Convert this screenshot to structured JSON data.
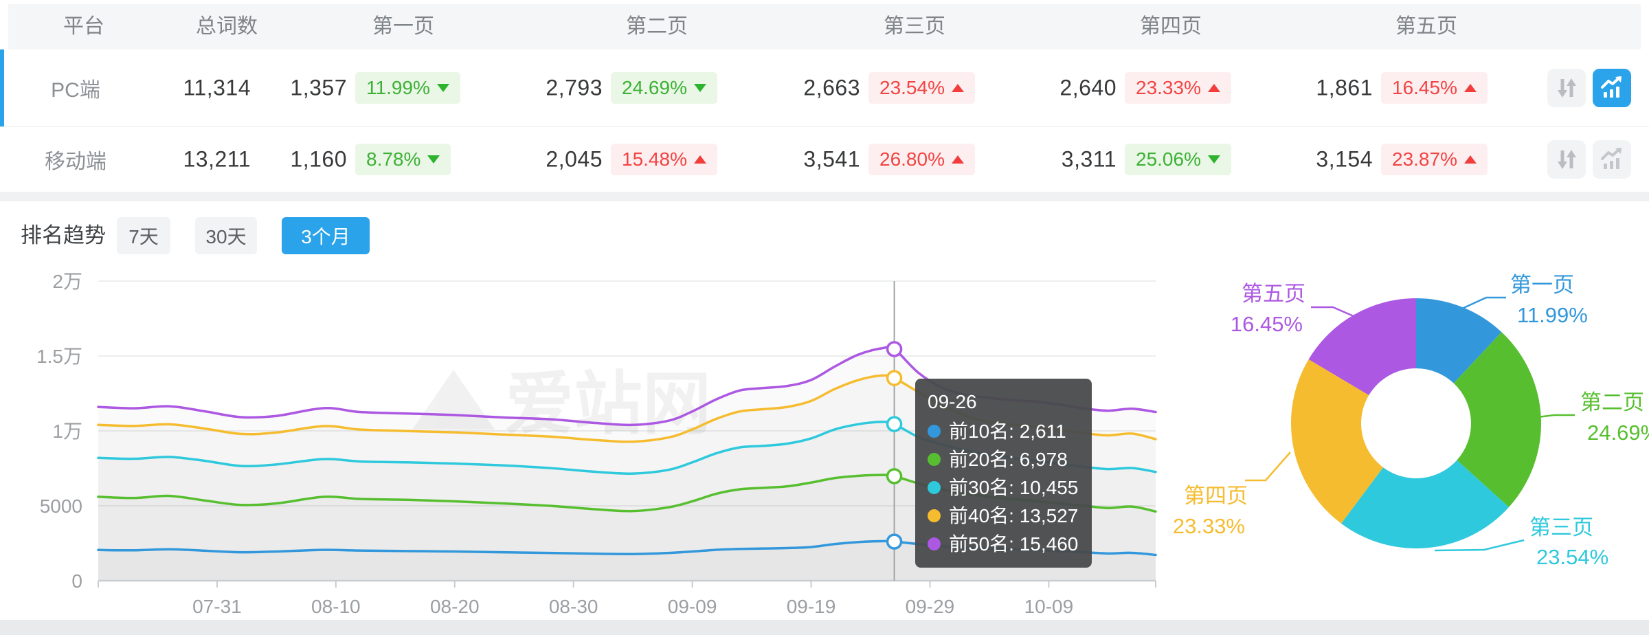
{
  "table": {
    "headers": [
      "平台",
      "总词数",
      "第一页",
      "第二页",
      "第三页",
      "第四页",
      "第五页"
    ],
    "rows": [
      {
        "platform": "PC端",
        "total": "11,314",
        "selected": true,
        "chart_active": true,
        "pages": [
          {
            "count": "1,357",
            "pct": "11.99%",
            "dir": "down"
          },
          {
            "count": "2,793",
            "pct": "24.69%",
            "dir": "down"
          },
          {
            "count": "2,663",
            "pct": "23.54%",
            "dir": "up"
          },
          {
            "count": "2,640",
            "pct": "23.33%",
            "dir": "up"
          },
          {
            "count": "1,861",
            "pct": "16.45%",
            "dir": "up"
          }
        ]
      },
      {
        "platform": "移动端",
        "total": "13,211",
        "selected": false,
        "chart_active": false,
        "pages": [
          {
            "count": "1,160",
            "pct": "8.78%",
            "dir": "down"
          },
          {
            "count": "2,045",
            "pct": "15.48%",
            "dir": "up"
          },
          {
            "count": "3,541",
            "pct": "26.80%",
            "dir": "up"
          },
          {
            "count": "3,311",
            "pct": "25.06%",
            "dir": "down"
          },
          {
            "count": "3,154",
            "pct": "23.87%",
            "dir": "up"
          }
        ]
      }
    ]
  },
  "trend": {
    "title": "排名趋势",
    "tabs": [
      "7天",
      "30天",
      "3个月"
    ],
    "active_tab": 2
  },
  "watermark": "爱站网",
  "colors": {
    "accent_blue": "#2ba3ea",
    "badge_green_text": "#3cb135",
    "badge_red_text": "#f14443",
    "series": [
      "#3398db",
      "#57bf2f",
      "#2ec9dc",
      "#f5bc2f",
      "#ac58e2"
    ]
  },
  "chart_data": [
    {
      "type": "line",
      "title": "排名趋势",
      "xlabel": "",
      "ylabel": "",
      "ylim": [
        0,
        20000
      ],
      "grid": true,
      "day_span": 89,
      "x_ticks": [
        {
          "day": 10,
          "label": "07-31"
        },
        {
          "day": 20,
          "label": "08-10"
        },
        {
          "day": 30,
          "label": "08-20"
        },
        {
          "day": 40,
          "label": "08-30"
        },
        {
          "day": 50,
          "label": "09-09"
        },
        {
          "day": 60,
          "label": "09-19"
        },
        {
          "day": 70,
          "label": "09-29"
        },
        {
          "day": 80,
          "label": "10-09"
        }
      ],
      "y_ticks": [
        {
          "value": 0,
          "label": "0"
        },
        {
          "value": 5000,
          "label": "5000"
        },
        {
          "value": 10000,
          "label": "1万"
        },
        {
          "value": 15000,
          "label": "1.5万"
        },
        {
          "value": 20000,
          "label": "2万"
        }
      ],
      "series": [
        {
          "name": "前10名",
          "color": "#3398db",
          "points": [
            [
              0,
              2050
            ],
            [
              3,
              2030
            ],
            [
              6,
              2100
            ],
            [
              9,
              2000
            ],
            [
              12,
              1900
            ],
            [
              15,
              1950
            ],
            [
              19,
              2060
            ],
            [
              22,
              2010
            ],
            [
              26,
              1980
            ],
            [
              30,
              1950
            ],
            [
              34,
              1900
            ],
            [
              38,
              1850
            ],
            [
              42,
              1800
            ],
            [
              45,
              1780
            ],
            [
              48,
              1850
            ],
            [
              50,
              1950
            ],
            [
              52,
              2060
            ],
            [
              54,
              2120
            ],
            [
              56,
              2150
            ],
            [
              58,
              2180
            ],
            [
              60,
              2250
            ],
            [
              62,
              2450
            ],
            [
              64,
              2580
            ],
            [
              66,
              2640
            ],
            [
              67,
              2611
            ],
            [
              69,
              2450
            ],
            [
              71,
              2300
            ],
            [
              73,
              2200
            ],
            [
              75,
              2150
            ],
            [
              77,
              2100
            ],
            [
              79,
              2050
            ],
            [
              81,
              1980
            ],
            [
              83,
              1900
            ],
            [
              85,
              1820
            ],
            [
              87,
              1860
            ],
            [
              89,
              1720
            ]
          ]
        },
        {
          "name": "前20名",
          "color": "#57bf2f",
          "points": [
            [
              0,
              5600
            ],
            [
              3,
              5520
            ],
            [
              6,
              5660
            ],
            [
              9,
              5350
            ],
            [
              12,
              5060
            ],
            [
              15,
              5160
            ],
            [
              19,
              5600
            ],
            [
              22,
              5460
            ],
            [
              26,
              5400
            ],
            [
              30,
              5300
            ],
            [
              34,
              5160
            ],
            [
              38,
              5000
            ],
            [
              42,
              4760
            ],
            [
              45,
              4650
            ],
            [
              48,
              4900
            ],
            [
              50,
              5300
            ],
            [
              52,
              5800
            ],
            [
              54,
              6100
            ],
            [
              56,
              6200
            ],
            [
              58,
              6300
            ],
            [
              60,
              6550
            ],
            [
              62,
              6850
            ],
            [
              64,
              7000
            ],
            [
              66,
              7060
            ],
            [
              67,
              6978
            ],
            [
              69,
              6500
            ],
            [
              71,
              6100
            ],
            [
              73,
              5820
            ],
            [
              75,
              5620
            ],
            [
              77,
              5460
            ],
            [
              79,
              5300
            ],
            [
              81,
              5150
            ],
            [
              83,
              5000
            ],
            [
              85,
              4850
            ],
            [
              87,
              4950
            ],
            [
              89,
              4620
            ]
          ]
        },
        {
          "name": "前30名",
          "color": "#2ec9dc",
          "points": [
            [
              0,
              8200
            ],
            [
              3,
              8140
            ],
            [
              6,
              8260
            ],
            [
              9,
              8000
            ],
            [
              12,
              7660
            ],
            [
              15,
              7760
            ],
            [
              19,
              8120
            ],
            [
              22,
              7960
            ],
            [
              26,
              7900
            ],
            [
              30,
              7820
            ],
            [
              34,
              7700
            ],
            [
              38,
              7520
            ],
            [
              42,
              7260
            ],
            [
              45,
              7150
            ],
            [
              48,
              7400
            ],
            [
              50,
              7900
            ],
            [
              52,
              8500
            ],
            [
              54,
              8900
            ],
            [
              56,
              9000
            ],
            [
              58,
              9150
            ],
            [
              60,
              9500
            ],
            [
              62,
              10100
            ],
            [
              64,
              10450
            ],
            [
              66,
              10600
            ],
            [
              67,
              10455
            ],
            [
              69,
              9600
            ],
            [
              71,
              9100
            ],
            [
              73,
              8700
            ],
            [
              75,
              8400
            ],
            [
              77,
              8200
            ],
            [
              79,
              8000
            ],
            [
              81,
              7800
            ],
            [
              83,
              7600
            ],
            [
              85,
              7450
            ],
            [
              87,
              7520
            ],
            [
              89,
              7260
            ]
          ]
        },
        {
          "name": "前40名",
          "color": "#f5bc2f",
          "points": [
            [
              0,
              10400
            ],
            [
              3,
              10330
            ],
            [
              6,
              10440
            ],
            [
              9,
              10150
            ],
            [
              12,
              9800
            ],
            [
              15,
              9890
            ],
            [
              19,
              10320
            ],
            [
              22,
              10090
            ],
            [
              26,
              9990
            ],
            [
              30,
              9900
            ],
            [
              34,
              9760
            ],
            [
              38,
              9620
            ],
            [
              42,
              9380
            ],
            [
              45,
              9280
            ],
            [
              48,
              9560
            ],
            [
              50,
              10100
            ],
            [
              52,
              10800
            ],
            [
              54,
              11300
            ],
            [
              56,
              11450
            ],
            [
              58,
              11600
            ],
            [
              60,
              12000
            ],
            [
              62,
              12800
            ],
            [
              64,
              13400
            ],
            [
              66,
              13700
            ],
            [
              67,
              13527
            ],
            [
              69,
              12600
            ],
            [
              71,
              11700
            ],
            [
              73,
              11000
            ],
            [
              75,
              10600
            ],
            [
              77,
              10400
            ],
            [
              79,
              10250
            ],
            [
              81,
              10050
            ],
            [
              83,
              9850
            ],
            [
              85,
              9700
            ],
            [
              87,
              9820
            ],
            [
              89,
              9450
            ]
          ]
        },
        {
          "name": "前50名",
          "color": "#ac58e2",
          "points": [
            [
              0,
              11600
            ],
            [
              3,
              11510
            ],
            [
              6,
              11640
            ],
            [
              9,
              11300
            ],
            [
              12,
              10920
            ],
            [
              15,
              11000
            ],
            [
              19,
              11520
            ],
            [
              22,
              11260
            ],
            [
              26,
              11160
            ],
            [
              30,
              11060
            ],
            [
              34,
              10900
            ],
            [
              38,
              10780
            ],
            [
              42,
              10520
            ],
            [
              45,
              10400
            ],
            [
              48,
              10680
            ],
            [
              50,
              11300
            ],
            [
              52,
              12100
            ],
            [
              54,
              12700
            ],
            [
              56,
              12860
            ],
            [
              58,
              13000
            ],
            [
              60,
              13400
            ],
            [
              62,
              14300
            ],
            [
              64,
              15100
            ],
            [
              66,
              15520
            ],
            [
              67,
              15460
            ],
            [
              69,
              13900
            ],
            [
              71,
              12900
            ],
            [
              73,
              12400
            ],
            [
              75,
              12200
            ],
            [
              77,
              12050
            ],
            [
              79,
              11950
            ],
            [
              81,
              11750
            ],
            [
              83,
              11500
            ],
            [
              85,
              11350
            ],
            [
              87,
              11480
            ],
            [
              89,
              11260
            ]
          ]
        }
      ],
      "crosshair": {
        "day": 67,
        "date": "09-26"
      },
      "tooltip": {
        "title": "09-26",
        "rows": [
          {
            "name": "前10名",
            "value": "2,611",
            "color": "#3398db"
          },
          {
            "name": "前20名",
            "value": "6,978",
            "color": "#57bf2f"
          },
          {
            "name": "前30名",
            "value": "10,455",
            "color": "#2ec9dc"
          },
          {
            "name": "前40名",
            "value": "13,527",
            "color": "#f5bc2f"
          },
          {
            "name": "前50名",
            "value": "15,460",
            "color": "#ac58e2"
          }
        ]
      }
    },
    {
      "type": "pie",
      "title": "",
      "donut": true,
      "labels": [
        "第一页",
        "第二页",
        "第三页",
        "第四页",
        "第五页"
      ],
      "values": [
        11.99,
        24.69,
        23.54,
        23.33,
        16.45
      ],
      "display": [
        "11.99%",
        "24.69%",
        "23.54%",
        "23.33%",
        "16.45%"
      ],
      "colors": [
        "#3398db",
        "#57bf2f",
        "#2ec9dc",
        "#f5bc2f",
        "#ac58e2"
      ],
      "legend_position": "outside-labels"
    }
  ]
}
